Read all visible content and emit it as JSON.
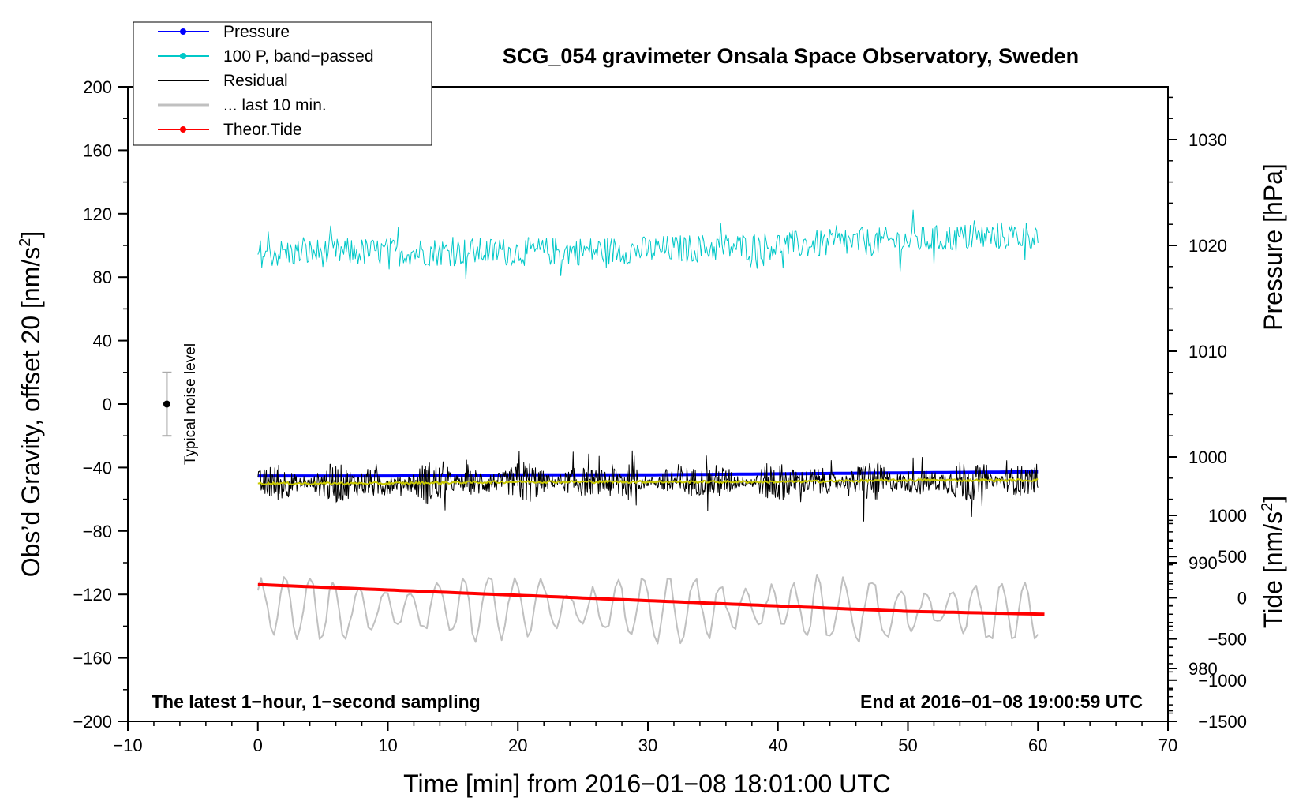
{
  "chart_data": {
    "type": "line",
    "title": "SCG_054 gravimeter Onsala Space Observatory, Sweden",
    "xlabel": "Time [min] from 2016−01−08 18:01:00 UTC",
    "x_range": [
      -10,
      70
    ],
    "x_ticks": [
      "−10",
      "0",
      "10",
      "20",
      "30",
      "40",
      "50",
      "60",
      "70"
    ],
    "left_axis": {
      "label_main": "Obs’d Gravity, offset 20 [nm/s",
      "label_sup": "2",
      "label_end": "]",
      "range": [
        -200,
        200
      ],
      "ticks": [
        "200",
        "160",
        "120",
        "80",
        "40",
        "0",
        "−40",
        "−80",
        "−120",
        "−160",
        "−200"
      ]
    },
    "right_pressure_axis": {
      "label": "Pressure [hPa]",
      "range": [
        975,
        1035
      ],
      "ticks": [
        "1030",
        "1020",
        "1010",
        "1000",
        "990",
        "980"
      ]
    },
    "right_tide_axis": {
      "label_main": "Tide [nm/s",
      "label_sup": "2",
      "label_end": "]",
      "range": [
        -1500,
        1000
      ],
      "ticks": [
        "1000",
        "500",
        "0",
        "−500",
        "−1000",
        "−1500"
      ]
    },
    "legend": {
      "position": "top-left",
      "entries": [
        {
          "name": "Pressure",
          "color": "#0000ff",
          "marker": true
        },
        {
          "name": "100 P, band−passed",
          "color": "#00c8c8",
          "marker": true
        },
        {
          "name": "Residual",
          "color": "#000000",
          "marker": false
        },
        {
          "name": "... last 10 min.",
          "color": "#c0c0c0",
          "marker": false
        },
        {
          "name": "Theor.Tide",
          "color": "#ff0000",
          "marker": true
        }
      ]
    },
    "series": [
      {
        "name": "Pressure",
        "axis": "pressure",
        "color": "#0000ff",
        "x": [
          0,
          10,
          20,
          30,
          40,
          50,
          60
        ],
        "values": [
          998.2,
          998.2,
          998.3,
          998.3,
          998.4,
          998.5,
          998.6
        ]
      },
      {
        "name": "100 P, band-passed",
        "axis": "left",
        "color": "#00c8c8",
        "x": [
          0,
          10,
          20,
          30,
          40,
          50,
          60
        ],
        "values": [
          95,
          96,
          96,
          97,
          100,
          103,
          107
        ],
        "noise_amplitude": 9
      },
      {
        "name": "Residual",
        "axis": "left",
        "color": "#000000",
        "x": [
          0,
          10,
          20,
          30,
          40,
          50,
          60
        ],
        "values": [
          -50,
          -50,
          -49,
          -49,
          -49,
          -49,
          -48
        ],
        "noise_amplitude": 14
      },
      {
        "name": "Residual (smoothed)",
        "axis": "left",
        "color": "#c8c800",
        "x": [
          0,
          10,
          20,
          30,
          40,
          50,
          60
        ],
        "values": [
          -50,
          -50,
          -49,
          -49,
          -49,
          -48,
          -48
        ]
      },
      {
        "name": "... last 10 min.",
        "axis": "left",
        "color": "#c0c0c0",
        "x": [
          0,
          10,
          20,
          30,
          40,
          50,
          60
        ],
        "values": [
          -128,
          -130,
          -128,
          -130,
          -128,
          -130,
          -130
        ],
        "noise_amplitude": 20
      },
      {
        "name": "Theor.Tide",
        "axis": "tide",
        "color": "#ff0000",
        "x": [
          0,
          10,
          20,
          30,
          40,
          50,
          60.5
        ],
        "values": [
          160,
          95,
          30,
          -35,
          -100,
          -165,
          -200
        ]
      }
    ],
    "noise_bar": {
      "label": "Typical noise level",
      "x": -7,
      "center": 0,
      "half_width": 20
    },
    "annotation_left": "The latest 1−hour, 1−second sampling",
    "annotation_right": "End at 2016−01−08 19:00:59 UTC"
  }
}
